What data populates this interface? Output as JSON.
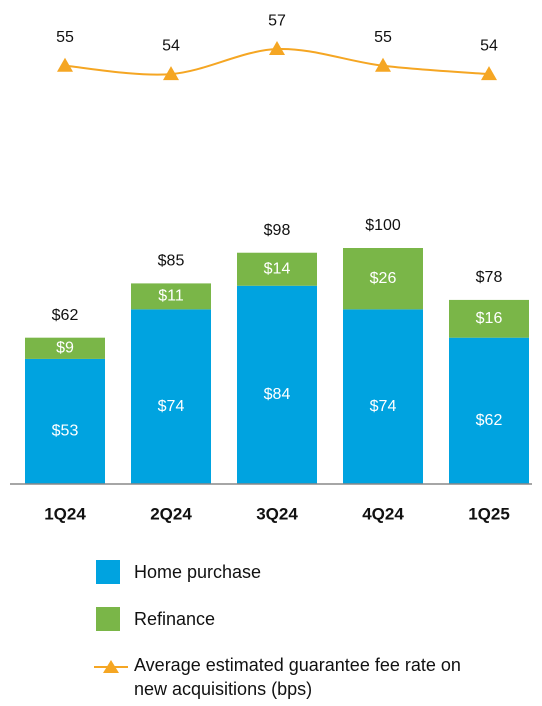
{
  "chart_data": {
    "type": "stacked-bar-line",
    "categories": [
      "1Q24",
      "2Q24",
      "3Q24",
      "4Q24",
      "1Q25"
    ],
    "series": [
      {
        "name": "Home purchase",
        "color": "#00a3e0",
        "values": [
          53,
          74,
          84,
          74,
          62
        ],
        "value_labels": [
          "$53",
          "$74",
          "$84",
          "$74",
          "$62"
        ]
      },
      {
        "name": "Refinance",
        "color": "#7ab648",
        "values": [
          9,
          11,
          14,
          26,
          16
        ],
        "value_labels": [
          "$9",
          "$11",
          "$14",
          "$26",
          "$16"
        ]
      },
      {
        "name": "Average estimated guarantee fee rate on new acquisitions (bps)",
        "type": "line",
        "axis": "y2",
        "color": "#f5a623",
        "values": [
          55,
          54,
          57,
          55,
          54
        ]
      }
    ],
    "totals": {
      "values": [
        62,
        85,
        98,
        100,
        78
      ],
      "value_labels": [
        "$62",
        "$85",
        "$98",
        "$100",
        "$78"
      ]
    },
    "ylim": [
      0,
      100
    ],
    "y2lim": [
      50,
      60
    ]
  }
}
